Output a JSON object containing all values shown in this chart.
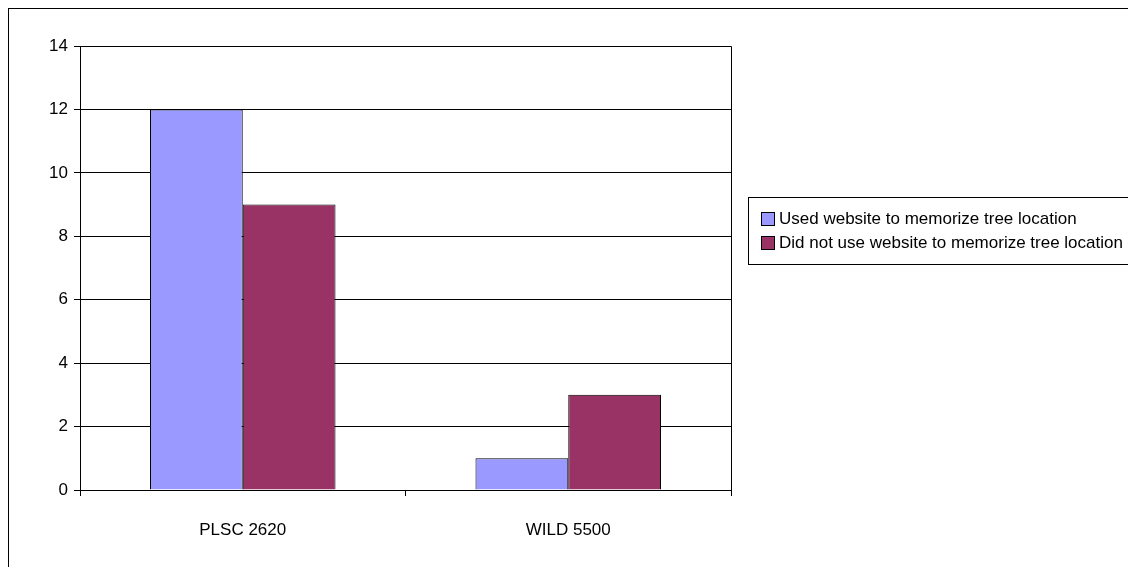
{
  "chart_data": {
    "type": "bar",
    "categories": [
      "PLSC 2620",
      "WILD 5500"
    ],
    "series": [
      {
        "name": "Used website to memorize tree location",
        "color": "#9999ff",
        "values": [
          12,
          1
        ]
      },
      {
        "name": "Did not use website to memorize tree location",
        "color": "#993366",
        "values": [
          9,
          3
        ]
      }
    ],
    "ylim": [
      0,
      14
    ],
    "yticks": [
      0,
      2,
      4,
      6,
      8,
      10,
      12,
      14
    ],
    "grid": "y",
    "legend": "right"
  }
}
